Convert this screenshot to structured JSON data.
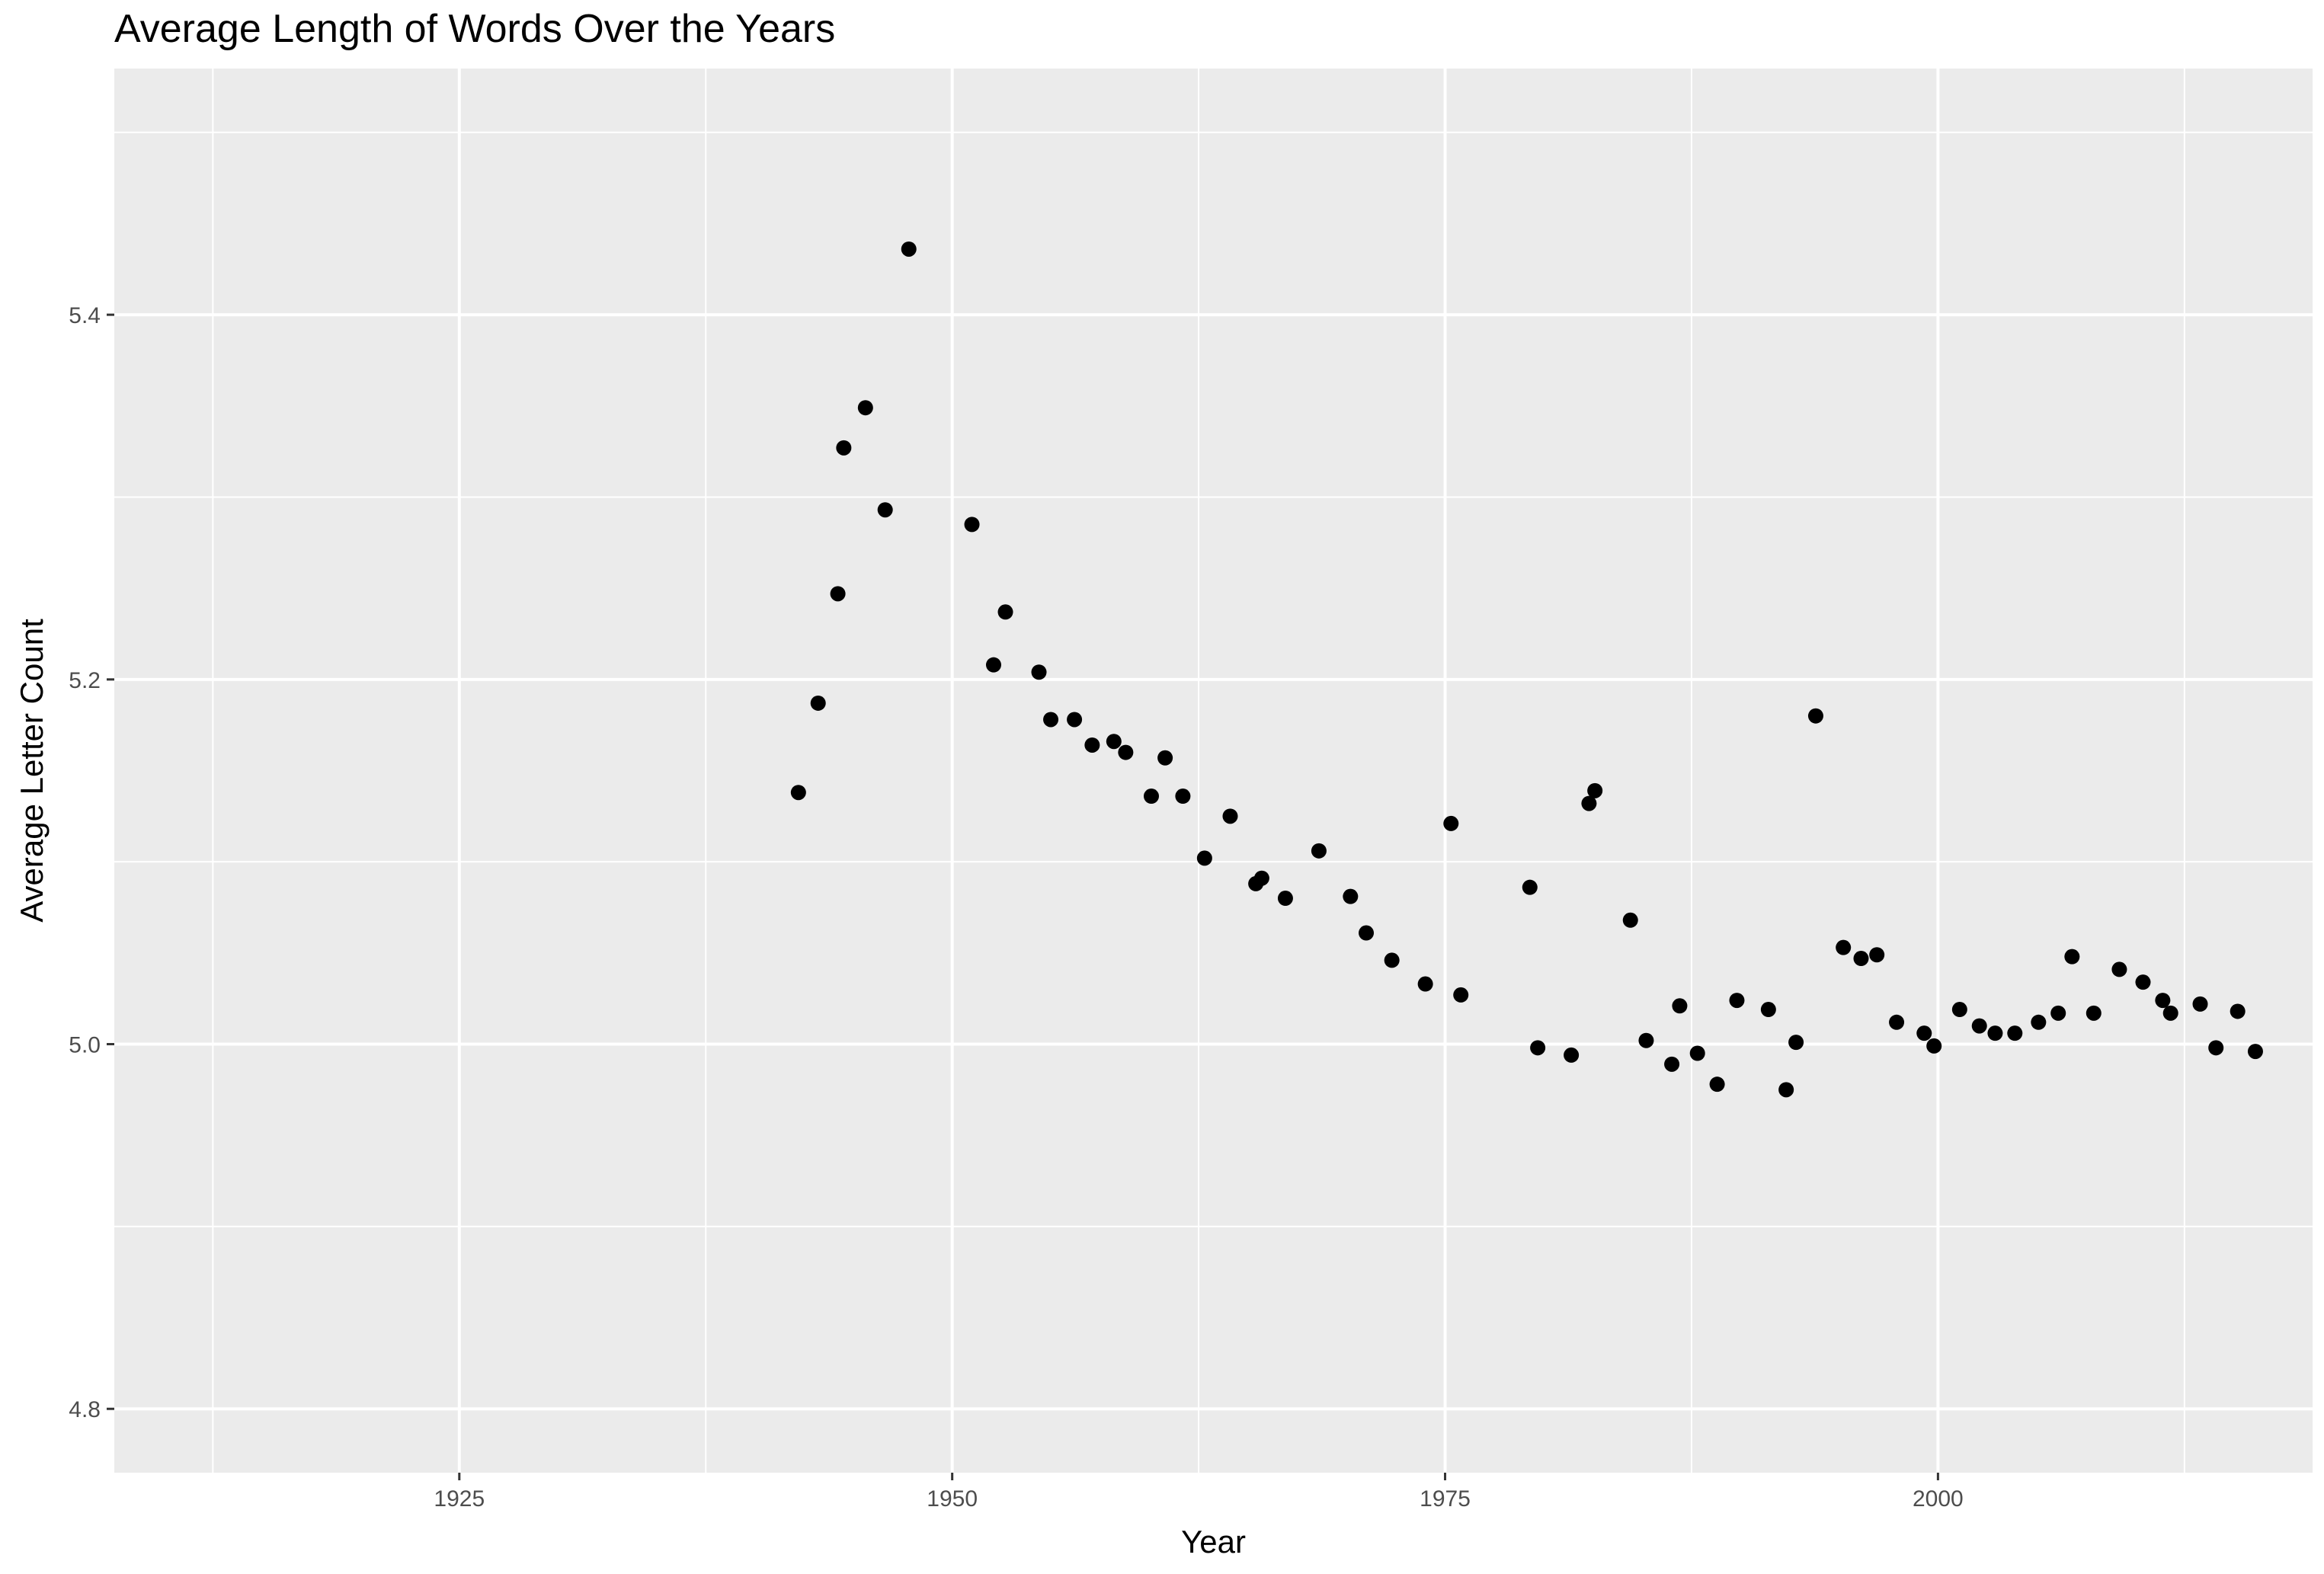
{
  "chart_data": {
    "type": "scatter",
    "title": "Average Length of Words Over the Years",
    "xlabel": "Year",
    "ylabel": "Average Letter Count",
    "xlim": [
      1907.5,
      2019
    ],
    "ylim": [
      4.765,
      5.535
    ],
    "x_ticks": [
      1925,
      1950,
      1975,
      2000
    ],
    "x_tick_labels": [
      "1925",
      "1950",
      "1975",
      "2000"
    ],
    "y_ticks": [
      4.8,
      5.0,
      5.2,
      5.4
    ],
    "y_tick_labels": [
      "4.8",
      "5.0",
      "5.2",
      "5.4"
    ],
    "grid": true,
    "point_color": "#000000",
    "panel_color": "#ebebeb",
    "grid_color": "#ffffff",
    "points": [
      {
        "x": 1942.2,
        "y": 5.138
      },
      {
        "x": 1943.2,
        "y": 5.187
      },
      {
        "x": 1944.2,
        "y": 5.247
      },
      {
        "x": 1944.5,
        "y": 5.327
      },
      {
        "x": 1945.6,
        "y": 5.349
      },
      {
        "x": 1946.6,
        "y": 5.293
      },
      {
        "x": 1947.8,
        "y": 5.436
      },
      {
        "x": 1951.0,
        "y": 5.285
      },
      {
        "x": 1952.1,
        "y": 5.208
      },
      {
        "x": 1952.7,
        "y": 5.237
      },
      {
        "x": 1954.4,
        "y": 5.204
      },
      {
        "x": 1955.0,
        "y": 5.178
      },
      {
        "x": 1956.2,
        "y": 5.178
      },
      {
        "x": 1957.1,
        "y": 5.164
      },
      {
        "x": 1958.2,
        "y": 5.166
      },
      {
        "x": 1958.8,
        "y": 5.16
      },
      {
        "x": 1960.1,
        "y": 5.136
      },
      {
        "x": 1960.8,
        "y": 5.157
      },
      {
        "x": 1961.7,
        "y": 5.136
      },
      {
        "x": 1962.8,
        "y": 5.102
      },
      {
        "x": 1964.1,
        "y": 5.125
      },
      {
        "x": 1965.4,
        "y": 5.088
      },
      {
        "x": 1965.7,
        "y": 5.091
      },
      {
        "x": 1966.9,
        "y": 5.08
      },
      {
        "x": 1968.6,
        "y": 5.106
      },
      {
        "x": 1970.2,
        "y": 5.081
      },
      {
        "x": 1971.0,
        "y": 5.061
      },
      {
        "x": 1972.3,
        "y": 5.046
      },
      {
        "x": 1974.0,
        "y": 5.033
      },
      {
        "x": 1975.3,
        "y": 5.121
      },
      {
        "x": 1975.8,
        "y": 5.027
      },
      {
        "x": 1979.3,
        "y": 5.086
      },
      {
        "x": 1979.7,
        "y": 4.998
      },
      {
        "x": 1981.4,
        "y": 4.994
      },
      {
        "x": 1982.3,
        "y": 5.132
      },
      {
        "x": 1982.6,
        "y": 5.139
      },
      {
        "x": 1984.4,
        "y": 5.068
      },
      {
        "x": 1985.2,
        "y": 5.002
      },
      {
        "x": 1986.5,
        "y": 4.989
      },
      {
        "x": 1986.9,
        "y": 5.021
      },
      {
        "x": 1987.8,
        "y": 4.995
      },
      {
        "x": 1988.8,
        "y": 4.978
      },
      {
        "x": 1989.8,
        "y": 5.024
      },
      {
        "x": 1991.4,
        "y": 5.019
      },
      {
        "x": 1992.3,
        "y": 4.975
      },
      {
        "x": 1992.8,
        "y": 5.001
      },
      {
        "x": 1993.8,
        "y": 5.18
      },
      {
        "x": 1995.2,
        "y": 5.053
      },
      {
        "x": 1996.1,
        "y": 5.047
      },
      {
        "x": 1996.9,
        "y": 5.049
      },
      {
        "x": 1997.9,
        "y": 5.012
      },
      {
        "x": 1999.3,
        "y": 5.006
      },
      {
        "x": 1999.8,
        "y": 4.999
      },
      {
        "x": 2001.1,
        "y": 5.019
      },
      {
        "x": 2002.1,
        "y": 5.01
      },
      {
        "x": 2002.9,
        "y": 5.006
      },
      {
        "x": 2003.9,
        "y": 5.006
      },
      {
        "x": 2005.1,
        "y": 5.012
      },
      {
        "x": 2006.1,
        "y": 5.017
      },
      {
        "x": 2006.8,
        "y": 5.048
      },
      {
        "x": 2007.9,
        "y": 5.017
      },
      {
        "x": 2009.2,
        "y": 5.041
      },
      {
        "x": 2010.4,
        "y": 5.034
      },
      {
        "x": 2011.4,
        "y": 5.024
      },
      {
        "x": 2011.8,
        "y": 5.017
      },
      {
        "x": 2013.3,
        "y": 5.022
      },
      {
        "x": 2014.1,
        "y": 4.998
      },
      {
        "x": 2015.2,
        "y": 5.018
      },
      {
        "x": 2016.1,
        "y": 4.996
      }
    ]
  }
}
